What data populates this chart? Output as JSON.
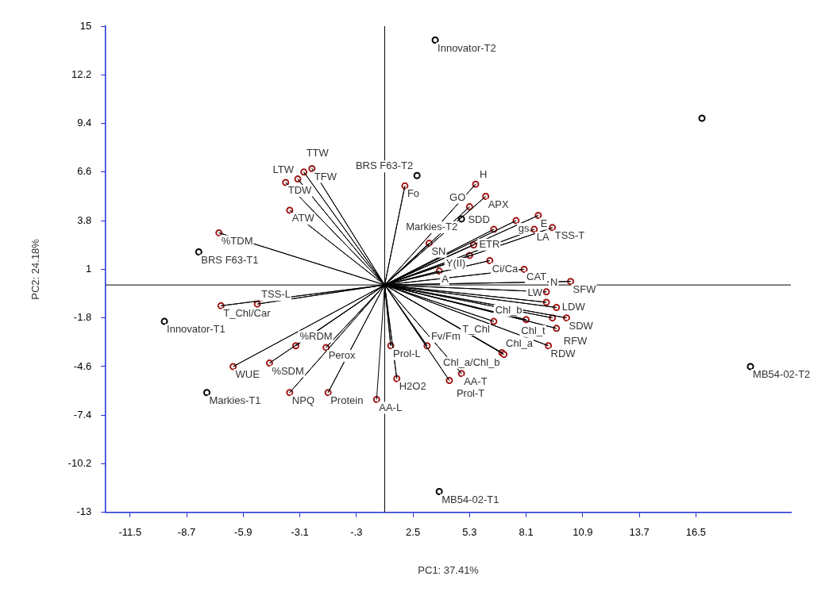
{
  "chart_data": {
    "type": "scatter",
    "xlabel": "PC1: 37.41%",
    "ylabel": "PC2: 24.18%",
    "xlim": [
      -12.7,
      21.2
    ],
    "ylim": [
      -13,
      15
    ],
    "xticks": [
      -11.5,
      -8.7,
      -5.9,
      -3.1,
      {
        "value": -0.3,
        "label": "-.3"
      },
      2.5,
      5.3,
      8.1,
      10.9,
      13.7,
      16.5
    ],
    "yticks": [
      15,
      12.2,
      9.4,
      6.6,
      3.8,
      1,
      -1.8,
      -4.6,
      -7.4,
      -10.2,
      -13
    ],
    "grid": false,
    "legend": false,
    "ref_lines": [
      {
        "axis": "x",
        "value": 1.1,
        "color": "#000000"
      },
      {
        "axis": "y",
        "value": 0.1,
        "color": "#000000"
      }
    ],
    "series": [
      {
        "type": "line",
        "color": "#000000",
        "marker": "none",
        "x": [
          1.1,
          -3.8,
          1.1,
          -3.2,
          1.1,
          -2.9,
          1.1,
          -2.5,
          1.1,
          -3.6,
          1.1,
          -7.1,
          1.1,
          2.1,
          1.1,
          5.6,
          1.1,
          6.1,
          1.1,
          5.3,
          1.1,
          7.6,
          1.1,
          8.7,
          1.1,
          6.5,
          1.1,
          8.5,
          1.1,
          9.4,
          1.1,
          3.3,
          1.1,
          5.5,
          1.1,
          5.3,
          1.1,
          6.3,
          1.1,
          8.0,
          1.1,
          3.8,
          1.1,
          10.3,
          1.1,
          9.1,
          1.1,
          9.1,
          1.1,
          9.6,
          1.1,
          9.4,
          1.1,
          10.1,
          1.1,
          9.6,
          1.1,
          8.1,
          1.1,
          6.5,
          1.1,
          9.2,
          1.1,
          6.9,
          1.1,
          7.0,
          1.1,
          1.4,
          1.1,
          3.2,
          1.1,
          4.9,
          1.1,
          1.7,
          1.1,
          4.3,
          1.1,
          -7.0,
          1.1,
          -5.2,
          1.1,
          -3.3,
          1.1,
          -1.8,
          1.1,
          -6.4,
          1.1,
          -4.6,
          1.1,
          -3.6,
          1.1,
          -1.7,
          1.1,
          0.7
        ],
        "values": [
          0.1,
          6.0,
          0.1,
          6.2,
          0.1,
          6.6,
          0.1,
          6.8,
          0.1,
          4.4,
          0.1,
          3.1,
          0.1,
          5.8,
          0.1,
          5.9,
          0.1,
          5.2,
          0.1,
          4.6,
          0.1,
          3.8,
          0.1,
          4.1,
          0.1,
          3.3,
          0.1,
          3.3,
          0.1,
          3.4,
          0.1,
          2.5,
          0.1,
          2.4,
          0.1,
          1.8,
          0.1,
          1.5,
          0.1,
          1.0,
          0.1,
          0.9,
          0.1,
          0.3,
          0.1,
          -0.3,
          0.1,
          -0.9,
          0.1,
          -1.2,
          0.1,
          -1.8,
          0.1,
          -1.8,
          0.1,
          -2.4,
          0.1,
          -1.9,
          0.1,
          -2.0,
          0.1,
          -3.4,
          0.1,
          -3.8,
          0.1,
          -3.9,
          0.1,
          -3.4,
          0.1,
          -3.4,
          0.1,
          -5.0,
          0.1,
          -5.3,
          0.1,
          -5.4,
          0.1,
          -1.1,
          0.1,
          -1.0,
          0.1,
          -3.4,
          0.1,
          -3.5,
          0.1,
          -4.6,
          0.1,
          -4.4,
          0.1,
          -6.1,
          0.1,
          -6.1,
          0.1,
          -6.5
        ]
      },
      {
        "type": "scatter",
        "color": "#a01818",
        "marker": "circle",
        "x": [
          -3.8,
          -3.2,
          -2.9,
          -2.5,
          -3.6,
          -7.1,
          2.1,
          5.6,
          6.1,
          5.3,
          7.6,
          8.7,
          6.5,
          8.5,
          9.4,
          3.3,
          5.5,
          5.3,
          6.3,
          8.0,
          3.8,
          10.3,
          9.1,
          9.1,
          9.6,
          9.4,
          10.1,
          9.6,
          8.1,
          6.5,
          9.2,
          6.9,
          7.0,
          1.4,
          3.2,
          4.9,
          1.7,
          4.3,
          -7.0,
          -5.2,
          -3.3,
          -1.8,
          -6.4,
          -4.6,
          -3.6,
          -1.7,
          0.7
        ],
        "values": [
          6.0,
          6.2,
          6.6,
          6.8,
          4.4,
          3.1,
          5.8,
          5.9,
          5.2,
          4.6,
          3.8,
          4.1,
          3.3,
          3.3,
          3.4,
          2.5,
          2.4,
          1.8,
          1.5,
          1.0,
          0.9,
          0.3,
          -0.3,
          -0.9,
          -1.2,
          -1.8,
          -1.8,
          -2.4,
          -1.9,
          -2.0,
          -3.4,
          -3.8,
          -3.9,
          -3.4,
          -3.4,
          -5.0,
          -5.3,
          -5.4,
          -1.1,
          -1.0,
          -3.4,
          -3.5,
          -4.6,
          -4.4,
          -6.1,
          -6.1,
          -6.5
        ],
        "value_labels": [
          "TDW",
          "LTW",
          "TTW",
          "TFW",
          "ATW",
          "%TDM",
          "Fo",
          "H",
          "APX",
          "GO",
          "gs",
          "E",
          "SDD",
          "LA",
          "TSS-T",
          "SN",
          "ETR",
          "Y(II)",
          "Ci/Ca",
          "CAT",
          "A",
          "SFW",
          "N",
          "LW",
          "LDW",
          "Chl_t",
          "SDW",
          "RFW",
          "Chl_b",
          "T_Chl",
          "RDW",
          "Chl_a",
          "Chl_a/Chl_b",
          "Prol-L",
          "Fv/Fm",
          "AA-T",
          "H2O2",
          "Prol-T",
          "T_Chl/Car",
          "TSS-L",
          "%RDM",
          "Perox",
          "WUE",
          "%SDM",
          "NPQ",
          "Protein",
          "AA-L"
        ]
      },
      {
        "type": "scatter",
        "color": "#000000",
        "marker": "circle",
        "x": [
          3.6,
          -8.1,
          -9.8,
          -7.7,
          3.8,
          19.2,
          16.8,
          2.7,
          4.9
        ],
        "values": [
          14.2,
          2.0,
          -2.0,
          -6.1,
          -11.8,
          -4.6,
          9.7,
          6.4,
          3.9
        ],
        "value_labels": [
          "Innovator-T2",
          "BRS F63-T1",
          "Innovator-T1",
          "Markies-T1",
          "MB54-02-T1",
          "MB54-02-T2",
          null,
          "BRS F63-T2",
          "Markies-T2"
        ]
      }
    ]
  }
}
